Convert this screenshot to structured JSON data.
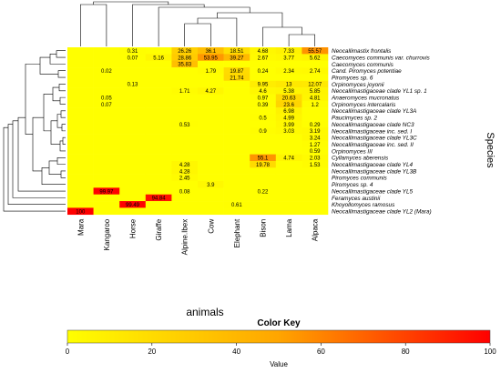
{
  "chart_data": {
    "type": "heatmap",
    "xlabel": "animals",
    "ylabel": "Species",
    "columns": [
      "Mara",
      "Kangaroo",
      "Horse",
      "Giraffe",
      "Alpine.Ibex",
      "Cow",
      "Elephant",
      "Bison",
      "Lama",
      "Alpaca"
    ],
    "rows": [
      "Neocallimastix frontalis",
      "Caecomyces communis var. churrovis",
      "Caecomyces communis",
      "Cand. Piromyces potentiae",
      "Piromyces sp. 6",
      "Orpinomyces joyonii",
      "Neocallimastigaceae clade YL1 sp. 1",
      "Anaeromyces mucronatus",
      "Orpinomyces intercalaris",
      "Neocallimastigaceae clade YL3A",
      "Paucimyces sp. 2",
      "Neocallimastigaceae clade NC3",
      "Neocallimastigaceae inc. sed. I",
      "Neocallimastigaceae clade YL3C",
      "Neocallimastigaceae inc. sed. II",
      "Orpinomyces III",
      "Cyllamyces aberensis",
      "Neocallimastigaceae clade YL4",
      "Neocallimastigaceae clade YL3B",
      "Piromyces communis",
      "Piromyces sp. 4",
      "Neocallimastigaceae clade YL5",
      "Feramyces austinii",
      "Khoyollomyces ramosus",
      "Neocallimastigaceae clade YL2 (Mara)"
    ],
    "values": [
      [
        null,
        null,
        0.31,
        null,
        26.26,
        36.1,
        18.51,
        4.68,
        7.33,
        55.57
      ],
      [
        null,
        null,
        0.07,
        5.16,
        28.86,
        53.95,
        39.27,
        2.67,
        3.77,
        5.62
      ],
      [
        null,
        null,
        null,
        null,
        35.83,
        null,
        null,
        null,
        null,
        null
      ],
      [
        null,
        0.02,
        null,
        null,
        null,
        1.79,
        19.87,
        0.24,
        2.34,
        2.74
      ],
      [
        null,
        null,
        null,
        null,
        null,
        null,
        21.74,
        null,
        null,
        null
      ],
      [
        null,
        null,
        0.13,
        null,
        null,
        null,
        null,
        9.95,
        13,
        12.07
      ],
      [
        null,
        null,
        null,
        null,
        1.71,
        4.27,
        null,
        4.6,
        5.38,
        5.85
      ],
      [
        null,
        0.05,
        null,
        null,
        null,
        null,
        null,
        0.97,
        20.63,
        4.81
      ],
      [
        null,
        0.07,
        null,
        null,
        null,
        null,
        null,
        0.39,
        23.6,
        1.2
      ],
      [
        null,
        null,
        null,
        null,
        null,
        null,
        null,
        null,
        6.98,
        null
      ],
      [
        null,
        null,
        null,
        null,
        null,
        null,
        null,
        0.5,
        4.99,
        null
      ],
      [
        null,
        null,
        null,
        null,
        0.53,
        null,
        null,
        null,
        3.99,
        0.29
      ],
      [
        null,
        null,
        null,
        null,
        null,
        null,
        null,
        0.9,
        3.03,
        3.19
      ],
      [
        null,
        null,
        null,
        null,
        null,
        null,
        null,
        null,
        null,
        3.24
      ],
      [
        null,
        null,
        null,
        null,
        null,
        null,
        null,
        null,
        null,
        1.27
      ],
      [
        null,
        null,
        null,
        null,
        null,
        null,
        null,
        null,
        null,
        0.59
      ],
      [
        null,
        null,
        null,
        null,
        null,
        null,
        null,
        55.1,
        4.74,
        2.03
      ],
      [
        null,
        null,
        null,
        null,
        4.28,
        null,
        null,
        19.78,
        null,
        1.53
      ],
      [
        null,
        null,
        null,
        null,
        4.28,
        null,
        null,
        null,
        null,
        null
      ],
      [
        null,
        null,
        null,
        null,
        2.45,
        null,
        null,
        null,
        null,
        null
      ],
      [
        null,
        null,
        null,
        null,
        null,
        3.9,
        null,
        null,
        null,
        null
      ],
      [
        null,
        99.97,
        null,
        null,
        0.08,
        null,
        null,
        0.22,
        null,
        null
      ],
      [
        null,
        null,
        null,
        94.84,
        null,
        null,
        null,
        null,
        null,
        null
      ],
      [
        null,
        null,
        99.49,
        null,
        null,
        null,
        0.61,
        null,
        null,
        null
      ],
      [
        100,
        null,
        null,
        null,
        null,
        null,
        null,
        null,
        null,
        null
      ]
    ],
    "color_key": {
      "title": "Color Key",
      "label": "Value",
      "range": [
        0,
        100
      ],
      "ticks": [
        0,
        20,
        40,
        60,
        80,
        100
      ],
      "low_color": "#ffff00",
      "mid_color": "#ffa500",
      "high_color": "#ff0000"
    },
    "dendrogram": {
      "rows": true,
      "columns": true
    }
  }
}
